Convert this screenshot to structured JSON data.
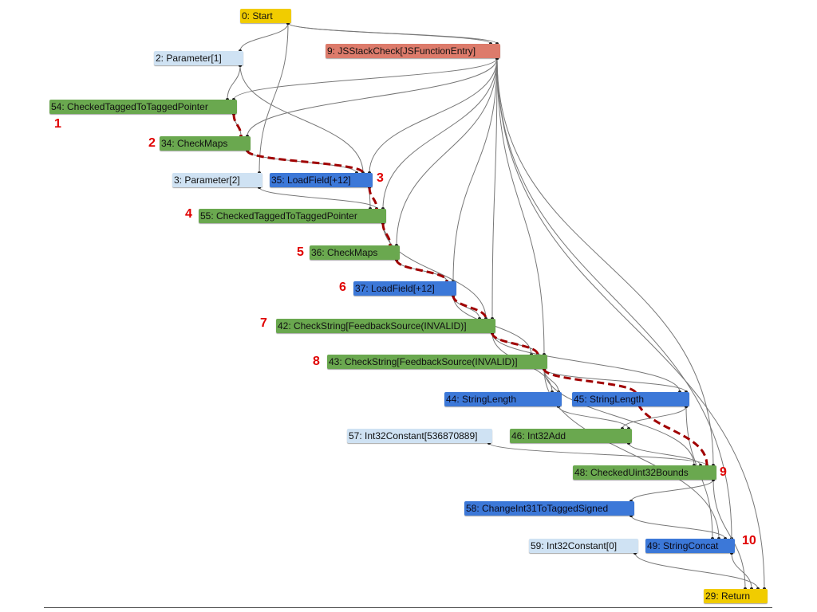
{
  "colors": {
    "control": "#f1cc00",
    "effect": "#dd7b6b",
    "constant": "#cfe2f3",
    "check": "#6aa84f",
    "value": "#3c78d8",
    "edge": "#777777",
    "highlight_path": "#a00000",
    "annotation": "#e00000"
  },
  "nodes": [
    {
      "id": "0",
      "label": "0: Start",
      "kind": "control"
    },
    {
      "id": "9",
      "label": "9: JSStackCheck[JSFunctionEntry]",
      "kind": "effect"
    },
    {
      "id": "2",
      "label": "2: Parameter[1]",
      "kind": "constant"
    },
    {
      "id": "54",
      "label": "54: CheckedTaggedToTaggedPointer",
      "kind": "check"
    },
    {
      "id": "34",
      "label": "34: CheckMaps",
      "kind": "check"
    },
    {
      "id": "3",
      "label": "3: Parameter[2]",
      "kind": "constant"
    },
    {
      "id": "35",
      "label": "35: LoadField[+12]",
      "kind": "value"
    },
    {
      "id": "55",
      "label": "55: CheckedTaggedToTaggedPointer",
      "kind": "check"
    },
    {
      "id": "36",
      "label": "36: CheckMaps",
      "kind": "check"
    },
    {
      "id": "37",
      "label": "37: LoadField[+12]",
      "kind": "value"
    },
    {
      "id": "42",
      "label": "42: CheckString[FeedbackSource(INVALID)]",
      "kind": "check"
    },
    {
      "id": "43",
      "label": "43: CheckString[FeedbackSource(INVALID)]",
      "kind": "check"
    },
    {
      "id": "44",
      "label": "44: StringLength",
      "kind": "value"
    },
    {
      "id": "45",
      "label": "45: StringLength",
      "kind": "value"
    },
    {
      "id": "57",
      "label": "57: Int32Constant[536870889]",
      "kind": "constant"
    },
    {
      "id": "46",
      "label": "46: Int32Add",
      "kind": "check"
    },
    {
      "id": "48",
      "label": "48: CheckedUint32Bounds",
      "kind": "check"
    },
    {
      "id": "58",
      "label": "58: ChangeInt31ToTaggedSigned",
      "kind": "value"
    },
    {
      "id": "59",
      "label": "59: Int32Constant[0]",
      "kind": "constant"
    },
    {
      "id": "49",
      "label": "49: StringConcat",
      "kind": "value"
    },
    {
      "id": "29",
      "label": "29: Return",
      "kind": "control"
    }
  ],
  "edges": [
    [
      "0",
      "2"
    ],
    [
      "0",
      "3"
    ],
    [
      "0",
      "9"
    ],
    [
      "0",
      "9"
    ],
    [
      "9",
      "54"
    ],
    [
      "9",
      "34"
    ],
    [
      "9",
      "35"
    ],
    [
      "9",
      "55"
    ],
    [
      "9",
      "36"
    ],
    [
      "9",
      "37"
    ],
    [
      "9",
      "42"
    ],
    [
      "9",
      "43"
    ],
    [
      "9",
      "48"
    ],
    [
      "9",
      "49"
    ],
    [
      "9",
      "29"
    ],
    [
      "2",
      "54"
    ],
    [
      "2",
      "35"
    ],
    [
      "3",
      "55"
    ],
    [
      "54",
      "34"
    ],
    [
      "34",
      "35"
    ],
    [
      "35",
      "55"
    ],
    [
      "55",
      "36"
    ],
    [
      "36",
      "37"
    ],
    [
      "55",
      "42"
    ],
    [
      "37",
      "42"
    ],
    [
      "42",
      "43"
    ],
    [
      "37",
      "43"
    ],
    [
      "43",
      "44"
    ],
    [
      "43",
      "45"
    ],
    [
      "42",
      "44"
    ],
    [
      "42",
      "45"
    ],
    [
      "44",
      "46"
    ],
    [
      "45",
      "46"
    ],
    [
      "57",
      "48"
    ],
    [
      "46",
      "48"
    ],
    [
      "43",
      "48"
    ],
    [
      "48",
      "58"
    ],
    [
      "58",
      "49"
    ],
    [
      "43",
      "49"
    ],
    [
      "45",
      "49"
    ],
    [
      "59",
      "29"
    ],
    [
      "49",
      "29"
    ],
    [
      "48",
      "29"
    ]
  ],
  "highlight_path": [
    "54",
    "34",
    "35",
    "55",
    "36",
    "37",
    "42",
    "43",
    "45",
    "48"
  ],
  "annotations": [
    {
      "label": "1",
      "near": "54"
    },
    {
      "label": "2",
      "near": "34"
    },
    {
      "label": "3",
      "near": "35"
    },
    {
      "label": "4",
      "near": "55"
    },
    {
      "label": "5",
      "near": "36"
    },
    {
      "label": "6",
      "near": "37"
    },
    {
      "label": "7",
      "near": "42"
    },
    {
      "label": "8",
      "near": "43"
    },
    {
      "label": "9",
      "near": "48"
    },
    {
      "label": "10",
      "near": "49"
    }
  ]
}
